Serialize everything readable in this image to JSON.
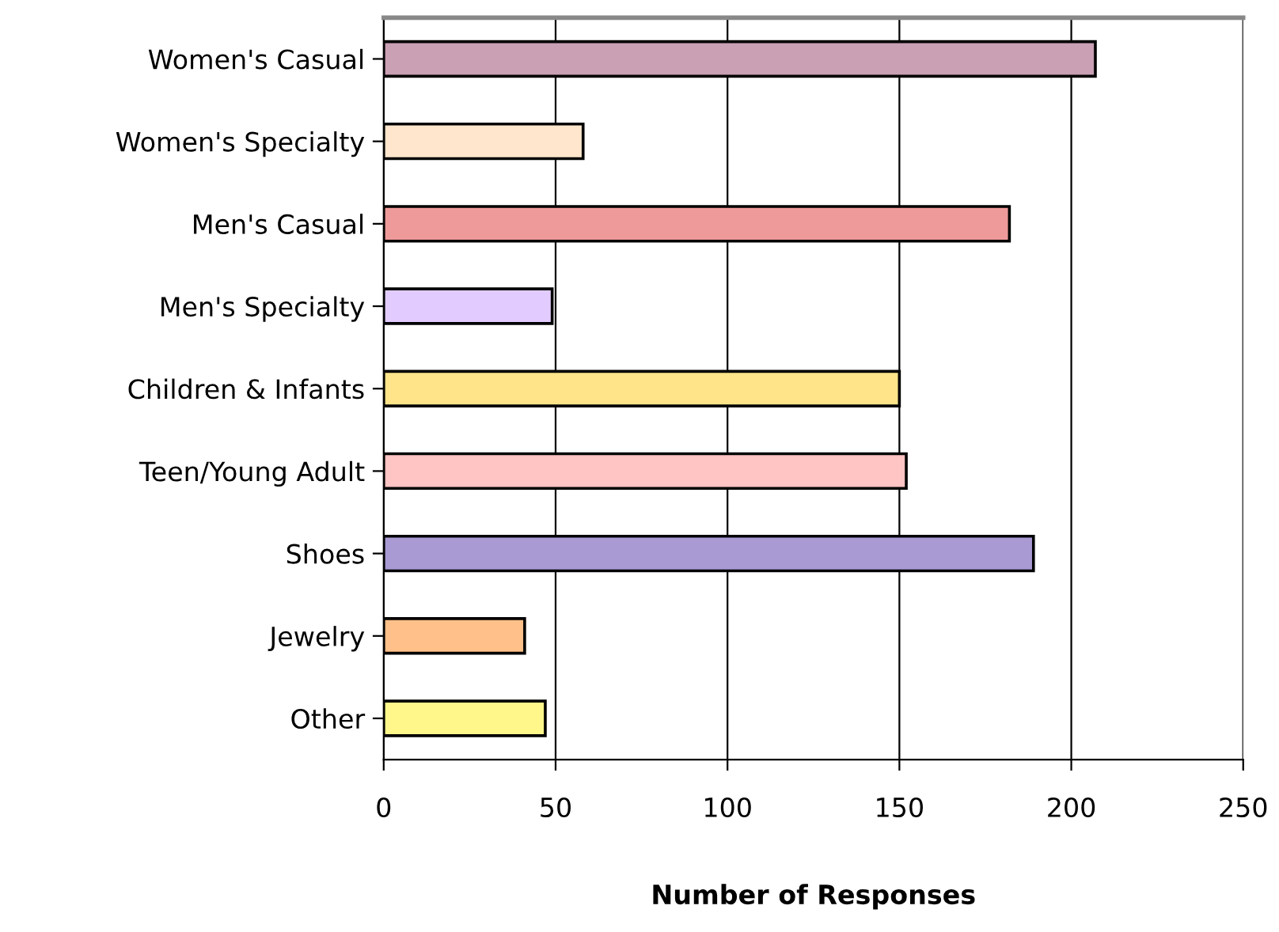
{
  "chart_data": {
    "type": "bar",
    "orientation": "horizontal",
    "xlabel": "Number of Responses",
    "categories": [
      "Women's Casual",
      "Women's Specialty",
      "Men's Casual",
      "Men's Specialty",
      "Children & Infants",
      "Teen/Young Adult",
      "Shoes",
      "Jewelry",
      "Other"
    ],
    "values": [
      207,
      58,
      182,
      49,
      150,
      152,
      189,
      41,
      47
    ],
    "colors": [
      "#c9a0b4",
      "#ffe6cc",
      "#ef9a9a",
      "#e2ccff",
      "#ffe48a",
      "#ffc4c4",
      "#a99ad4",
      "#ffc08a",
      "#fff78a"
    ],
    "xlim": [
      0,
      250
    ],
    "xticks": [
      0,
      50,
      100,
      150,
      200,
      250
    ],
    "grid": "x"
  }
}
